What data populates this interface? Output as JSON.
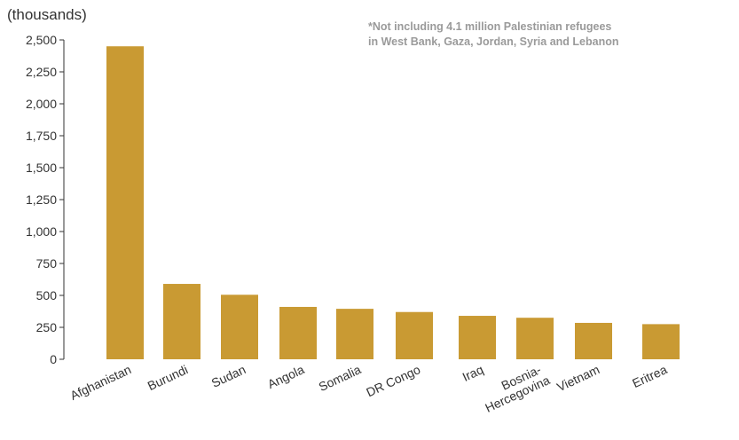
{
  "chart_data": {
    "type": "bar",
    "unit_label": "(thousands)",
    "footnote": [
      "*Not including 4.1 million Palestinian refugees",
      "in West Bank, Gaza, Jordan, Syria and Lebanon"
    ],
    "categories": [
      "Afghanistan",
      "Burundi",
      "Sudan",
      "Angola",
      "Somalia",
      "DR Congo",
      "Iraq",
      "Bosnia-Hercegovina",
      "Vietnam",
      "Eritrea"
    ],
    "category_lines": [
      [
        "Afghanistan"
      ],
      [
        "Burundi"
      ],
      [
        "Sudan"
      ],
      [
        "Angola"
      ],
      [
        "Somalia"
      ],
      [
        "DR Congo"
      ],
      [
        "Iraq"
      ],
      [
        "Bosnia-",
        "Hercegovina"
      ],
      [
        "Vietnam"
      ],
      [
        "Eritrea"
      ]
    ],
    "values": [
      2450,
      590,
      505,
      410,
      395,
      370,
      340,
      325,
      285,
      275
    ],
    "ylim": [
      0,
      2500
    ],
    "yticks": [
      "0",
      "250",
      "500",
      "750",
      "1,000",
      "1,250",
      "1,500",
      "1,750",
      "2,000",
      "2,250",
      "2,500"
    ],
    "bar_color": "#C99A33",
    "grid": false
  }
}
